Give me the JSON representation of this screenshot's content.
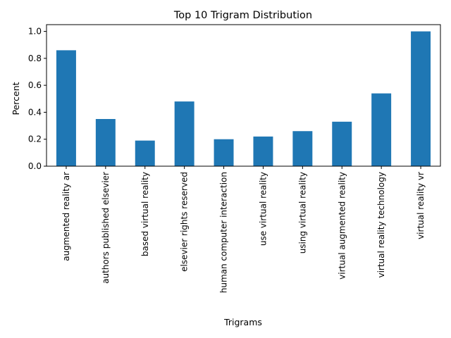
{
  "chart_data": {
    "type": "bar",
    "title": "Top 10 Trigram Distribution",
    "xlabel": "Trigrams",
    "ylabel": "Percent",
    "categories": [
      "augmented reality ar",
      "authors published elsevier",
      "based virtual reality",
      "elsevier rights reserved",
      "human computer interaction",
      "use virtual reality",
      "using virtual reality",
      "virtual augmented reality",
      "virtual reality technology",
      "virtual reality vr"
    ],
    "values": [
      0.86,
      0.35,
      0.19,
      0.48,
      0.2,
      0.22,
      0.26,
      0.33,
      0.54,
      1.0
    ],
    "ylim": [
      0,
      1.05
    ],
    "yticks": [
      0.0,
      0.2,
      0.4,
      0.6,
      0.8,
      1.0
    ],
    "ytick_labels": [
      "0.0",
      "0.2",
      "0.4",
      "0.6",
      "0.8",
      "1.0"
    ],
    "bar_color": "#1f77b4",
    "grid": false,
    "legend": false
  }
}
